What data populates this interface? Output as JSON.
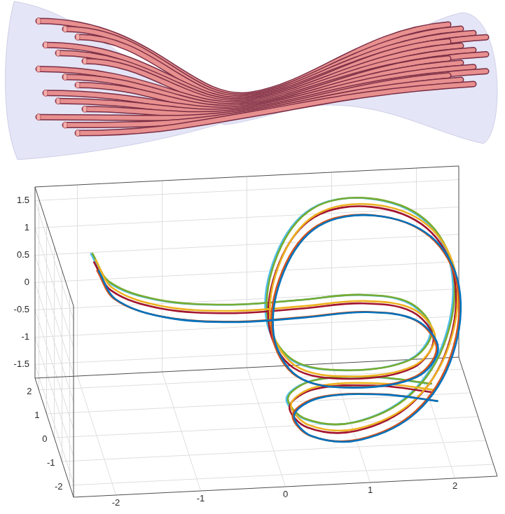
{
  "chart_data": {
    "type": "line",
    "xlim": [
      -2.5,
      2.5
    ],
    "ylim": [
      -2.5,
      2.5
    ],
    "zlim": [
      -1.75,
      1.75
    ],
    "xticks": [
      -2,
      -1,
      0,
      1,
      2
    ],
    "yticks": [
      -2,
      -1,
      0,
      1,
      2
    ],
    "zticks": [
      -1.5,
      -1,
      -0.5,
      0,
      0.5,
      1,
      1.5
    ],
    "grid": true,
    "series": [
      {
        "color": "#0072BD",
        "x": [
          -1.89,
          -1.68,
          -1.1,
          -0.28,
          0.55,
          1.29,
          1.87,
          2.12,
          1.87,
          1.13,
          0.47,
          0.18,
          0.3,
          0.71,
          1.38,
          2.04,
          2.32,
          2.18,
          1.69,
          1.0,
          0.42,
          0.23,
          0.49,
          1.2,
          1.84
        ],
        "y": [
          1.0,
          1.0,
          1.0,
          1.0,
          1.0,
          1.0,
          1.0,
          1.0,
          1.0,
          1.0,
          1.0,
          1.0,
          1.0,
          1.0,
          1.0,
          1.0,
          0.5,
          -0.2,
          -1.0,
          -1.3,
          -1.3,
          -1.1,
          -1.5,
          -1.8,
          -2.1
        ],
        "z": [
          0.83,
          0.28,
          -0.09,
          -0.24,
          -0.22,
          -0.18,
          -0.38,
          -0.91,
          -1.41,
          -1.55,
          -1.3,
          -0.51,
          0.64,
          1.44,
          1.58,
          1.14,
          0.44,
          -0.52,
          -1.16,
          -1.49,
          -1.38,
          -1.07,
          -0.6,
          -0.46,
          -0.5
        ]
      },
      {
        "color": "#D95319",
        "x": [
          -1.89,
          -1.68,
          -1.1,
          -0.28,
          0.55,
          1.29,
          1.87,
          2.12,
          1.87,
          1.13,
          0.47,
          0.18,
          0.3,
          0.71,
          1.38,
          2.04,
          2.32,
          2.18,
          1.69,
          1.0,
          0.42,
          0.23,
          0.49,
          1.2,
          1.84
        ],
        "y": [
          1.2,
          1.2,
          1.2,
          1.2,
          1.2,
          1.2,
          1.2,
          1.2,
          1.2,
          1.2,
          1.2,
          1.2,
          1.2,
          1.2,
          1.2,
          1.2,
          0.7,
          0.0,
          -0.8,
          -1.1,
          -1.1,
          -0.9,
          -1.3,
          -1.6,
          -1.9
        ],
        "z": [
          0.75,
          0.2,
          -0.17,
          -0.32,
          -0.3,
          -0.26,
          -0.46,
          -0.99,
          -1.49,
          -1.63,
          -1.38,
          -0.59,
          0.56,
          1.36,
          1.5,
          1.06,
          0.36,
          -0.6,
          -1.24,
          -1.57,
          -1.46,
          -1.15,
          -0.68,
          -0.54,
          -0.58
        ]
      },
      {
        "color": "#EDB120",
        "x": [
          -1.89,
          -1.68,
          -1.1,
          -0.28,
          0.55,
          1.29,
          1.87,
          2.12,
          1.87,
          1.13,
          0.47,
          0.18,
          0.3,
          0.71,
          1.38,
          2.04,
          2.32,
          2.18,
          1.69,
          1.0,
          0.42,
          0.23,
          0.49,
          1.2,
          1.84
        ],
        "y": [
          1.4,
          1.4,
          1.4,
          1.4,
          1.4,
          1.4,
          1.4,
          1.4,
          1.4,
          1.4,
          1.4,
          1.4,
          1.4,
          1.4,
          1.4,
          1.4,
          0.9,
          0.2,
          -0.6,
          -0.9,
          -0.9,
          -0.7,
          -1.1,
          -1.4,
          -1.7
        ],
        "z": [
          0.86,
          0.31,
          -0.06,
          -0.21,
          -0.19,
          -0.15,
          -0.35,
          -0.88,
          -1.38,
          -1.52,
          -1.27,
          -0.48,
          0.67,
          1.47,
          1.61,
          1.17,
          0.47,
          -0.49,
          -1.13,
          -1.46,
          -1.35,
          -1.04,
          -0.57,
          -0.43,
          -0.47
        ]
      },
      {
        "color": "#A2142F",
        "x": [
          -1.89,
          -1.68,
          -1.1,
          -0.28,
          0.55,
          1.29,
          1.87,
          2.12,
          1.87,
          1.13,
          0.47,
          0.18,
          0.3,
          0.71,
          1.38,
          2.04,
          2.32,
          2.18,
          1.69,
          1.0,
          0.42,
          0.23,
          0.49,
          1.2,
          1.84
        ],
        "y": [
          1.6,
          1.6,
          1.6,
          1.6,
          1.6,
          1.6,
          1.6,
          1.6,
          1.6,
          1.6,
          1.6,
          1.6,
          1.6,
          1.6,
          1.6,
          1.6,
          1.1,
          0.4,
          -0.4,
          -0.7,
          -0.7,
          -0.5,
          -0.9,
          -1.2,
          -1.5
        ],
        "z": [
          0.73,
          0.18,
          -0.19,
          -0.34,
          -0.32,
          -0.28,
          -0.48,
          -1.01,
          -1.51,
          -1.65,
          -1.4,
          -0.61,
          0.54,
          1.34,
          1.48,
          1.04,
          0.34,
          -0.62,
          -1.26,
          -1.59,
          -1.48,
          -1.17,
          -0.7,
          -0.56,
          -0.6
        ]
      },
      {
        "color": "#77AC30",
        "x": [
          -1.89,
          -1.68,
          -1.1,
          -0.28,
          0.55,
          1.29,
          1.87,
          2.12,
          1.87,
          1.13,
          0.47,
          0.18,
          0.3,
          0.71,
          1.38,
          2.04,
          2.32,
          2.18,
          1.69,
          1.0,
          0.42,
          0.23,
          0.49,
          1.2,
          1.84
        ],
        "y": [
          1.8,
          1.8,
          1.8,
          1.8,
          1.8,
          1.8,
          1.8,
          1.8,
          1.8,
          1.8,
          1.8,
          1.8,
          1.8,
          1.8,
          1.8,
          1.8,
          1.3,
          0.6,
          -0.2,
          -0.5,
          -0.5,
          -0.3,
          -0.7,
          -1.0,
          -1.3
        ],
        "z": [
          0.8,
          0.25,
          -0.12,
          -0.27,
          -0.25,
          -0.21,
          -0.41,
          -0.94,
          -1.44,
          -1.58,
          -1.33,
          -0.54,
          0.61,
          1.41,
          1.55,
          1.11,
          0.41,
          -0.55,
          -1.19,
          -1.52,
          -1.41,
          -1.1,
          -0.63,
          -0.49,
          -0.53
        ]
      },
      {
        "color": "#4DBEEE",
        "x": [
          -1.89,
          -1.68,
          -1.1,
          -0.28,
          0.55,
          1.29,
          1.87,
          2.12,
          1.87,
          1.13,
          0.47,
          0.18,
          0.3,
          0.71,
          1.38,
          2.04,
          2.32,
          2.18,
          1.69,
          1.0,
          0.42,
          0.23,
          0.49,
          1.2,
          1.84
        ],
        "y": [
          2.0,
          2.0,
          2.0,
          2.0,
          2.0,
          2.0,
          2.0,
          2.0,
          2.0,
          2.0,
          2.0,
          2.0,
          2.0,
          2.0,
          2.0,
          2.0,
          1.5,
          0.8,
          0.0,
          -0.3,
          -0.3,
          -0.1,
          -0.5,
          -0.8,
          -1.1
        ],
        "z": [
          0.71,
          0.16,
          -0.21,
          -0.36,
          -0.34,
          -0.3,
          -0.5,
          -1.03,
          -1.53,
          -1.67,
          -1.42,
          -0.63,
          0.52,
          1.32,
          1.46,
          1.02,
          0.32,
          -0.64,
          -1.28,
          -1.61,
          -1.5,
          -1.19,
          -0.72,
          -0.58,
          -0.62
        ]
      }
    ]
  }
}
